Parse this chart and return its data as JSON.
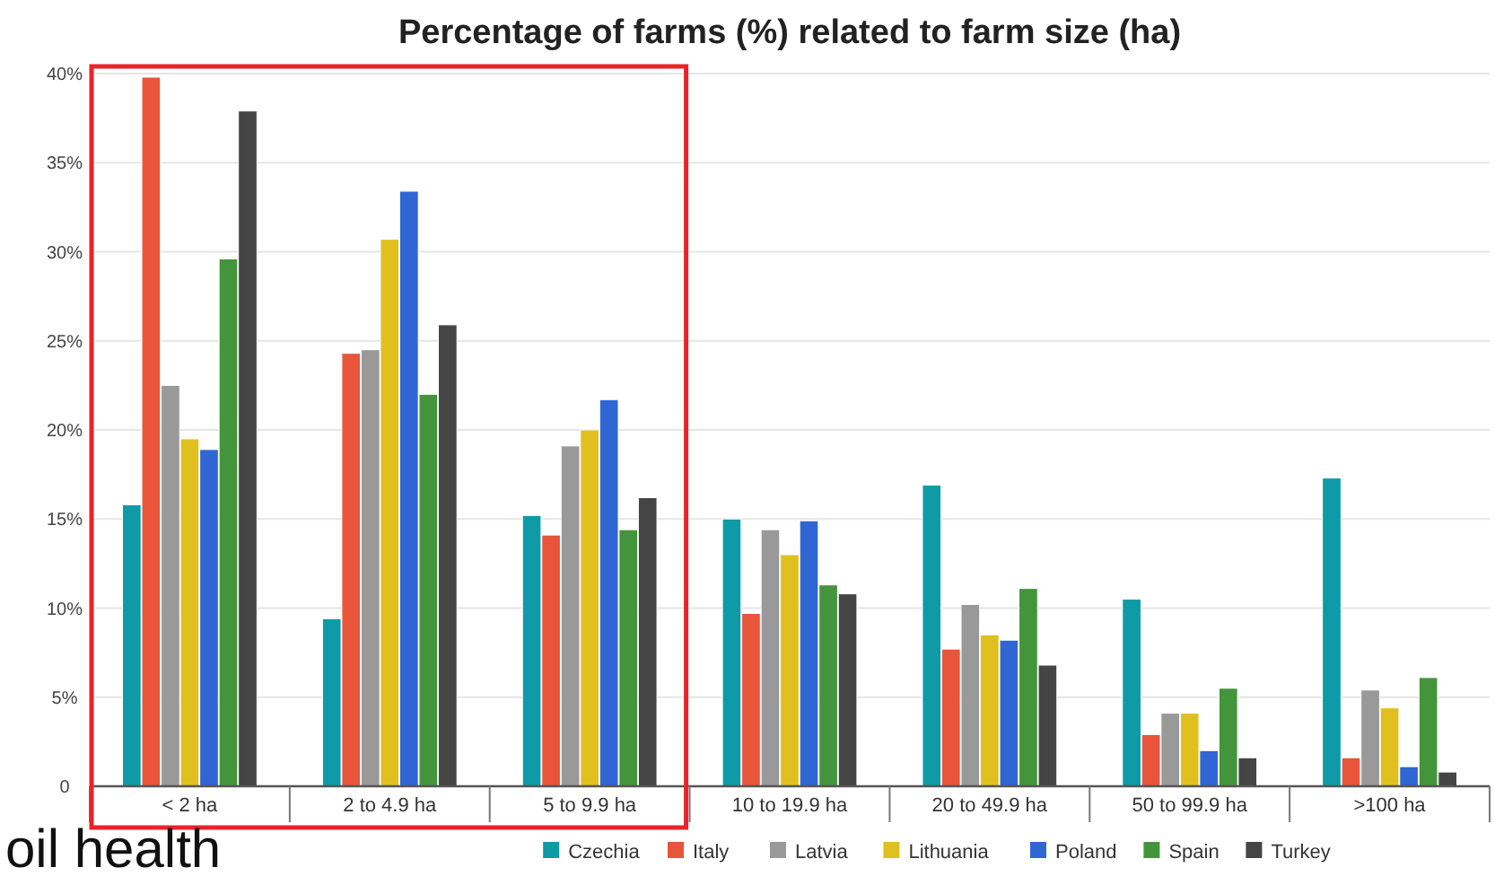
{
  "chart_data": {
    "type": "bar",
    "title": "Percentage of farms (%) related to farm size (ha)",
    "categories": [
      "< 2 ha",
      "2 to 4.9 ha",
      "5 to 9.9 ha",
      "10 to 19.9 ha",
      "20 to 49.9 ha",
      "50 to 99.9 ha",
      ">100 ha"
    ],
    "series": [
      {
        "name": "Czechia",
        "color": "#0e9aa7",
        "values": [
          15.8,
          9.4,
          15.2,
          15.0,
          16.9,
          10.5,
          17.3
        ]
      },
      {
        "name": "Italy",
        "color": "#e8553a",
        "values": [
          39.8,
          24.3,
          14.1,
          9.7,
          7.7,
          2.9,
          1.6
        ]
      },
      {
        "name": "Latvia",
        "color": "#999999",
        "values": [
          22.5,
          24.5,
          19.1,
          14.4,
          10.2,
          4.1,
          5.4
        ]
      },
      {
        "name": "Lithuania",
        "color": "#e0c01f",
        "values": [
          19.5,
          30.7,
          20.0,
          13.0,
          8.5,
          4.1,
          4.4
        ]
      },
      {
        "name": "Poland",
        "color": "#2f66d4",
        "values": [
          18.9,
          33.4,
          21.7,
          14.9,
          8.2,
          2.0,
          1.1
        ]
      },
      {
        "name": "Spain",
        "color": "#43943a",
        "values": [
          29.6,
          22.0,
          14.4,
          11.3,
          11.1,
          5.5,
          6.1
        ]
      },
      {
        "name": "Turkey",
        "color": "#454545",
        "values": [
          37.9,
          25.9,
          16.2,
          10.8,
          6.8,
          1.6,
          0.8
        ]
      }
    ],
    "ylim": [
      0,
      40
    ],
    "yticks": [
      0,
      {
        "value": 5,
        "label": "5%"
      },
      {
        "value": 10,
        "label": "10%"
      },
      {
        "value": 15,
        "label": "15%"
      },
      {
        "value": 20,
        "label": "20%"
      },
      {
        "value": 25,
        "label": "25%"
      },
      {
        "value": 30,
        "label": "30%"
      },
      {
        "value": 35,
        "label": "35%"
      },
      {
        "value": 40,
        "label": "40%"
      }
    ],
    "grid": "y",
    "legend": "bottom",
    "annotations": [
      "oil health"
    ]
  }
}
